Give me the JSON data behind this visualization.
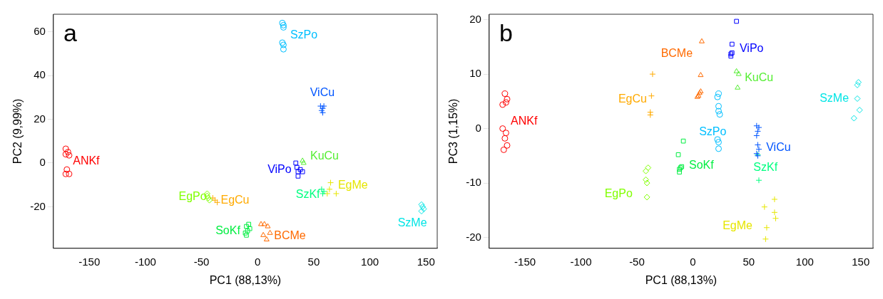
{
  "chart_data": [
    {
      "type": "scatter",
      "title": "a",
      "xlabel": "PC1 (88,13%)",
      "ylabel": "PC2 (9,99%)",
      "xlim": [
        -182,
        160
      ],
      "ylim": [
        -39,
        68
      ],
      "xticks": [
        -150,
        -100,
        -50,
        0,
        50,
        100,
        150
      ],
      "yticks": [
        -20,
        0,
        20,
        40,
        60
      ],
      "grid": false,
      "legend": false,
      "series": [
        {
          "name": "ANKf",
          "color": "#ff0000",
          "marker": "circle",
          "x": [
            -171,
            -169,
            -171,
            -168,
            -170,
            -171,
            -168
          ],
          "values": [
            6.5,
            5,
            4,
            3.5,
            -3,
            -5,
            -5
          ]
        },
        {
          "name": "EgPo",
          "color": "#80ff00",
          "marker": "diamond",
          "x": [
            -45,
            -44,
            -43,
            -45
          ],
          "values": [
            -14,
            -16,
            -17,
            -15
          ]
        },
        {
          "name": "EgCu",
          "color": "#ffaa00",
          "marker": "cross",
          "x": [
            -38,
            -36,
            -40
          ],
          "values": [
            -17,
            -18,
            -16
          ]
        },
        {
          "name": "SoKf",
          "color": "#00ee40",
          "marker": "square",
          "x": [
            -10,
            -8,
            -9,
            -11,
            -7,
            -10
          ],
          "values": [
            -29,
            -28,
            -31,
            -32,
            -30,
            -33
          ]
        },
        {
          "name": "BCMe",
          "color": "#ff6a00",
          "marker": "triangle",
          "x": [
            3,
            6,
            9,
            5,
            8,
            11
          ],
          "values": [
            -28,
            -28,
            -29,
            -33,
            -35,
            -32
          ]
        },
        {
          "name": "SzPo",
          "color": "#00bfff",
          "marker": "circle",
          "x": [
            22,
            23,
            23,
            22,
            23,
            23
          ],
          "values": [
            64,
            63,
            62,
            55,
            54,
            52
          ]
        },
        {
          "name": "ViCu",
          "color": "#0055ff",
          "marker": "cross",
          "x": [
            56,
            58,
            57,
            59,
            58
          ],
          "values": [
            26,
            25,
            24,
            26,
            23
          ]
        },
        {
          "name": "ViPo",
          "color": "#0000ff",
          "marker": "square",
          "x": [
            34,
            35,
            36,
            38,
            40,
            36
          ],
          "values": [
            0,
            -2,
            -4,
            -3,
            -4,
            -6
          ]
        },
        {
          "name": "KuCu",
          "color": "#55ee33",
          "marker": "triangle",
          "x": [
            40,
            41
          ],
          "values": [
            1,
            0
          ]
        },
        {
          "name": "SzKf",
          "color": "#00ff80",
          "marker": "cross",
          "x": [
            57,
            59,
            58
          ],
          "values": [
            -12,
            -13,
            -14
          ]
        },
        {
          "name": "EgMe",
          "color": "#e6e600",
          "marker": "cross",
          "x": [
            65,
            64,
            62,
            70
          ],
          "values": [
            -9,
            -12,
            -14,
            -14
          ]
        },
        {
          "name": "SzMe",
          "color": "#00e5e5",
          "marker": "diamond",
          "x": [
            147,
            146,
            148,
            146
          ],
          "values": [
            -20,
            -22,
            -21,
            -19
          ]
        }
      ]
    },
    {
      "type": "scatter",
      "title": "b",
      "xlabel": "PC1 (88,13%)",
      "ylabel": "PC3 (1,15%)",
      "xlim": [
        -182,
        161
      ],
      "ylim": [
        -22,
        21
      ],
      "xticks": [
        -150,
        -100,
        -50,
        0,
        50,
        100,
        150
      ],
      "yticks": [
        -20,
        -10,
        0,
        10,
        20
      ],
      "grid": false,
      "legend": false,
      "series": [
        {
          "name": "ANKf",
          "color": "#ff0000",
          "marker": "circle",
          "x": [
            -168,
            -166,
            -167,
            -170,
            -170,
            -167,
            -168,
            -166,
            -169
          ],
          "values": [
            6.4,
            5.4,
            4.8,
            4.4,
            0,
            -0.8,
            -1.8,
            -3.1,
            -3.9
          ]
        },
        {
          "name": "EgCu",
          "color": "#ffaa00",
          "marker": "cross",
          "x": [
            -36,
            -37,
            -38,
            -38
          ],
          "values": [
            10,
            6,
            3,
            2.5
          ]
        },
        {
          "name": "EgPo",
          "color": "#80ff00",
          "marker": "diamond",
          "x": [
            -40,
            -42,
            -42,
            -41,
            -41
          ],
          "values": [
            -7.2,
            -7.8,
            -9.4,
            -10,
            -12.6
          ]
        },
        {
          "name": "BCMe",
          "color": "#ff6a00",
          "marker": "triangle",
          "x": [
            8,
            7,
            6,
            5,
            7,
            4
          ],
          "values": [
            16,
            9.8,
            6.5,
            6,
            6.8,
            5.8
          ]
        },
        {
          "name": "ViPo",
          "color": "#0000ff",
          "marker": "square",
          "x": [
            39,
            35,
            34,
            34,
            35
          ],
          "values": [
            19.7,
            15.5,
            13.7,
            13.3,
            13.9
          ]
        },
        {
          "name": "KuCu",
          "color": "#55ee33",
          "marker": "triangle",
          "x": [
            39,
            41,
            40
          ],
          "values": [
            10.5,
            10,
            7.5
          ]
        },
        {
          "name": "SzPo",
          "color": "#00bfff",
          "marker": "circle",
          "x": [
            23,
            22,
            23,
            23,
            24,
            22,
            23,
            23
          ],
          "values": [
            6.4,
            5.8,
            4.1,
            3.2,
            2.6,
            -2,
            -2.5,
            -3.7
          ]
        },
        {
          "name": "ViCu",
          "color": "#0055ff",
          "marker": "cross",
          "x": [
            57,
            59,
            58,
            57,
            58,
            59,
            57,
            58
          ],
          "values": [
            0.5,
            0.2,
            -0.5,
            -1.3,
            -3,
            -3.8,
            -4.6,
            -5
          ]
        },
        {
          "name": "SzKf",
          "color": "#00ff80",
          "marker": "cross",
          "x": [
            58,
            59
          ],
          "values": [
            -4.8,
            -9.5
          ]
        },
        {
          "name": "SzMe",
          "color": "#00e5e5",
          "marker": "diamond",
          "x": [
            148,
            147,
            147,
            149,
            144
          ],
          "values": [
            8.5,
            8,
            5.5,
            3.4,
            1.9
          ]
        },
        {
          "name": "EgMe",
          "color": "#e6e600",
          "marker": "cross",
          "x": [
            73,
            64,
            73,
            74,
            66,
            65
          ],
          "values": [
            -13,
            -14.4,
            -15.4,
            -16.5,
            -18.2,
            -20.3
          ]
        },
        {
          "name": "SoKf",
          "color": "#00ee40",
          "marker": "square",
          "x": [
            -10,
            -12,
            -11,
            -12,
            -13,
            -8.5
          ],
          "values": [
            -7,
            -7.5,
            -7.2,
            -8,
            -4.8,
            -2.3
          ]
        }
      ]
    }
  ]
}
